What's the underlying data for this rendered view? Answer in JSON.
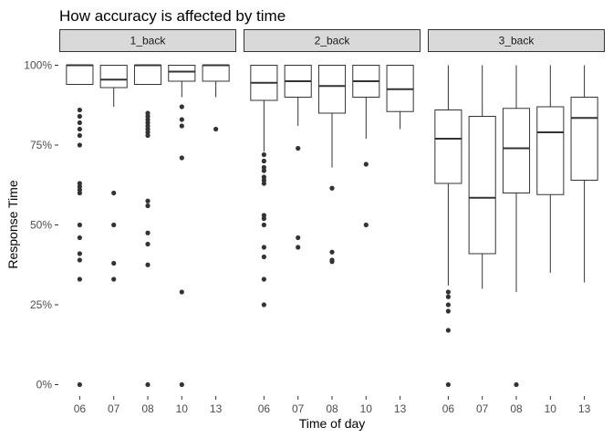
{
  "chart_data": {
    "type": "boxplot",
    "title": "How accuracy is affected by time",
    "xlabel": "Time of day",
    "ylabel": "Response Time",
    "ylim": [
      -0.03,
      1.03
    ],
    "y_ticks": [
      {
        "value": 0,
        "label": "0%"
      },
      {
        "value": 0.25,
        "label": "25%"
      },
      {
        "value": 0.5,
        "label": "50%"
      },
      {
        "value": 0.75,
        "label": "75%"
      },
      {
        "value": 1,
        "label": "100%"
      }
    ],
    "grid": false,
    "facets": [
      {
        "label": "1_back",
        "categories": [
          "06",
          "07",
          "08",
          "10",
          "13"
        ],
        "boxes": [
          {
            "category": "06",
            "min": 0.94,
            "q1": 0.94,
            "median": 1.0,
            "q3": 1.0,
            "max": 1.0,
            "outliers": [
              0.86,
              0.84,
              0.82,
              0.8,
              0.78,
              0.75,
              0.63,
              0.62,
              0.61,
              0.6,
              0.5,
              0.46,
              0.41,
              0.39,
              0.33,
              0.0
            ]
          },
          {
            "category": "07",
            "min": 0.87,
            "q1": 0.93,
            "median": 0.955,
            "q3": 1.0,
            "max": 1.0,
            "outliers": [
              0.6,
              0.5,
              0.38,
              0.33
            ]
          },
          {
            "category": "08",
            "min": 0.94,
            "q1": 0.94,
            "median": 1.0,
            "q3": 1.0,
            "max": 1.0,
            "outliers": [
              0.85,
              0.84,
              0.83,
              0.82,
              0.81,
              0.8,
              0.79,
              0.78,
              0.575,
              0.56,
              0.475,
              0.44,
              0.375,
              0.0
            ]
          },
          {
            "category": "10",
            "min": 0.9,
            "q1": 0.95,
            "median": 0.98,
            "q3": 1.0,
            "max": 1.0,
            "outliers": [
              0.87,
              0.83,
              0.81,
              0.71,
              0.29,
              0.0
            ]
          },
          {
            "category": "13",
            "min": 0.9,
            "q1": 0.95,
            "median": 1.0,
            "q3": 1.0,
            "max": 1.0,
            "outliers": [
              0.8
            ]
          }
        ]
      },
      {
        "label": "2_back",
        "categories": [
          "06",
          "07",
          "08",
          "10",
          "13"
        ],
        "boxes": [
          {
            "category": "06",
            "min": 0.73,
            "q1": 0.89,
            "median": 0.945,
            "q3": 1.0,
            "max": 1.0,
            "outliers": [
              0.72,
              0.7,
              0.68,
              0.67,
              0.65,
              0.64,
              0.63,
              0.53,
              0.52,
              0.5,
              0.43,
              0.4,
              0.33,
              0.25
            ]
          },
          {
            "category": "07",
            "min": 0.81,
            "q1": 0.9,
            "median": 0.95,
            "q3": 1.0,
            "max": 1.0,
            "outliers": [
              0.74,
              0.46,
              0.43
            ]
          },
          {
            "category": "08",
            "min": 0.68,
            "q1": 0.85,
            "median": 0.935,
            "q3": 1.0,
            "max": 1.0,
            "outliers": [
              0.615,
              0.415,
              0.39,
              0.385
            ]
          },
          {
            "category": "10",
            "min": 0.77,
            "q1": 0.9,
            "median": 0.95,
            "q3": 1.0,
            "max": 1.0,
            "outliers": [
              0.69,
              0.5
            ]
          },
          {
            "category": "13",
            "min": 0.8,
            "q1": 0.855,
            "median": 0.925,
            "q3": 1.0,
            "max": 1.0,
            "outliers": []
          }
        ]
      },
      {
        "label": "3_back",
        "categories": [
          "06",
          "07",
          "08",
          "10",
          "13"
        ],
        "boxes": [
          {
            "category": "06",
            "min": 0.31,
            "q1": 0.63,
            "median": 0.77,
            "q3": 0.86,
            "max": 1.0,
            "outliers": [
              0.29,
              0.275,
              0.25,
              0.23,
              0.17,
              0.0
            ]
          },
          {
            "category": "07",
            "min": 0.3,
            "q1": 0.41,
            "median": 0.585,
            "q3": 0.84,
            "max": 1.0,
            "outliers": []
          },
          {
            "category": "08",
            "min": 0.29,
            "q1": 0.6,
            "median": 0.74,
            "q3": 0.865,
            "max": 1.0,
            "outliers": [
              0.0
            ]
          },
          {
            "category": "10",
            "min": 0.35,
            "q1": 0.595,
            "median": 0.79,
            "q3": 0.87,
            "max": 1.0,
            "outliers": []
          },
          {
            "category": "13",
            "min": 0.32,
            "q1": 0.64,
            "median": 0.835,
            "q3": 0.9,
            "max": 1.0,
            "outliers": []
          }
        ]
      }
    ],
    "colors": {
      "box_fill": "#ffffff",
      "box_line": "#333333",
      "point": "#333333",
      "strip_fill": "#d9d9d9"
    }
  }
}
